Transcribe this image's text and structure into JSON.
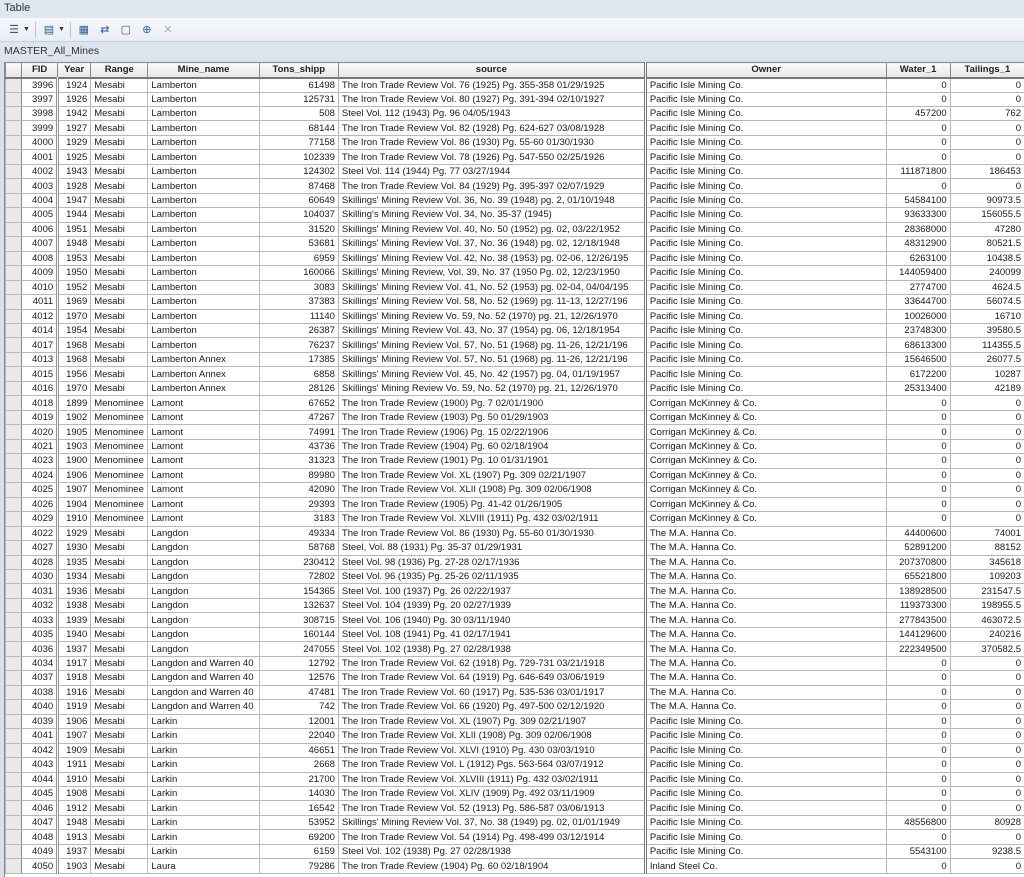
{
  "window": {
    "title": "Table"
  },
  "toolbar": {
    "icons": [
      "table-options-icon",
      "related-tables-icon",
      "select-by-attributes-icon",
      "switch-selection-icon",
      "clear-selection-icon",
      "zoom-to-selected-icon",
      "delete-selected-icon"
    ]
  },
  "table_name": "MASTER_All_Mines",
  "columns": [
    "FID",
    "Year",
    "Range",
    "Mine_name",
    "Tons_shipp",
    "source",
    "Owner",
    "Water_1",
    "Tailings_1"
  ],
  "rows": [
    [
      "3996",
      "1924",
      "Mesabi",
      "Lamberton",
      "61498",
      "The Iron Trade Review Vol. 76 (1925) Pg. 355-358 01/29/1925",
      "Pacific Isle Mining Co.",
      "0",
      "0"
    ],
    [
      "3997",
      "1926",
      "Mesabi",
      "Lamberton",
      "125731",
      "The Iron Trade Review Vol. 80 (1927) Pg. 391-394 02/10/1927",
      "Pacific Isle Mining Co.",
      "0",
      "0"
    ],
    [
      "3998",
      "1942",
      "Mesabi",
      "Lamberton",
      "508",
      "Steel Vol. 112 (1943) Pg. 96 04/05/1943",
      "Pacific Isle Mining Co.",
      "457200",
      "762"
    ],
    [
      "3999",
      "1927",
      "Mesabi",
      "Lamberton",
      "68144",
      "The Iron Trade Review Vol. 82 (1928) Pg. 624-627 03/08/1928",
      "Pacific Isle Mining Co.",
      "0",
      "0"
    ],
    [
      "4000",
      "1929",
      "Mesabi",
      "Lamberton",
      "77158",
      "The Iron Trade Review Vol. 86 (1930) Pg. 55-60 01/30/1930",
      "Pacific Isle Mining Co.",
      "0",
      "0"
    ],
    [
      "4001",
      "1925",
      "Mesabi",
      "Lamberton",
      "102339",
      "The Iron Trade Review Vol. 78 (1926) Pg. 547-550 02/25/1926",
      "Pacific Isle Mining Co.",
      "0",
      "0"
    ],
    [
      "4002",
      "1943",
      "Mesabi",
      "Lamberton",
      "124302",
      "Steel Vol. 114 (1944) Pg. 77 03/27/1944",
      "Pacific Isle Mining Co.",
      "111871800",
      "186453"
    ],
    [
      "4003",
      "1928",
      "Mesabi",
      "Lamberton",
      "87468",
      "The Iron Trade Review Vol. 84 (1929) Pg. 395-397 02/07/1929",
      "Pacific Isle Mining Co.",
      "0",
      "0"
    ],
    [
      "4004",
      "1947",
      "Mesabi",
      "Lamberton",
      "60649",
      "Skillings' Mining Review Vol. 36, No. 39 (1948) pg. 2, 01/10/1948",
      "Pacific Isle Mining Co.",
      "54584100",
      "90973.5"
    ],
    [
      "4005",
      "1944",
      "Mesabi",
      "Lamberton",
      "104037",
      "Skilling's Mining Review Vol. 34, No. 35-37 (1945)",
      "Pacific Isle Mining Co.",
      "93633300",
      "156055.5"
    ],
    [
      "4006",
      "1951",
      "Mesabi",
      "Lamberton",
      "31520",
      "Skillings' Mining Review Vol. 40, No. 50 (1952) pg. 02, 03/22/1952",
      "Pacific Isle Mining Co.",
      "28368000",
      "47280"
    ],
    [
      "4007",
      "1948",
      "Mesabi",
      "Lamberton",
      "53681",
      "Skillings' Mining Review Vol. 37, No. 36 (1948) pg. 02, 12/18/1948",
      "Pacific Isle Mining Co.",
      "48312900",
      "80521.5"
    ],
    [
      "4008",
      "1953",
      "Mesabi",
      "Lamberton",
      "6959",
      "Skillings' Mining Review Vol. 42, No. 38 (1953) pg. 02-06, 12/26/195",
      "Pacific Isle Mining Co.",
      "6263100",
      "10438.5"
    ],
    [
      "4009",
      "1950",
      "Mesabi",
      "Lamberton",
      "160066",
      "Skillings' Mining Review, Vol. 39, No. 37 (1950 Pg. 02, 12/23/1950",
      "Pacific Isle Mining Co.",
      "144059400",
      "240099"
    ],
    [
      "4010",
      "1952",
      "Mesabi",
      "Lamberton",
      "3083",
      "Skillings' Mining Review Vol. 41, No. 52 (1953) pg. 02-04, 04/04/195",
      "Pacific Isle Mining Co.",
      "2774700",
      "4624.5"
    ],
    [
      "4011",
      "1969",
      "Mesabi",
      "Lamberton",
      "37383",
      "Skillings' Mining Review Vol. 58, No. 52 (1969) pg. 11-13, 12/27/196",
      "Pacific Isle Mining Co.",
      "33644700",
      "56074.5"
    ],
    [
      "4012",
      "1970",
      "Mesabi",
      "Lamberton",
      "11140",
      "Skillings' Mining Review Vo. 59, No. 52 (1970) pg. 21, 12/26/1970",
      "Pacific Isle Mining Co.",
      "10026000",
      "16710"
    ],
    [
      "4014",
      "1954",
      "Mesabi",
      "Lamberton",
      "26387",
      "Skillings' Mining Review Vol. 43, No. 37 (1954) pg. 06, 12/18/1954",
      "Pacific Isle Mining Co.",
      "23748300",
      "39580.5"
    ],
    [
      "4017",
      "1968",
      "Mesabi",
      "Lamberton",
      "76237",
      "Skillings' Mining Review Vol. 57, No. 51 (1968) pg. 11-26, 12/21/196",
      "Pacific Isle Mining Co.",
      "68613300",
      "114355.5"
    ],
    [
      "4013",
      "1968",
      "Mesabi",
      "Lamberton Annex",
      "17385",
      "Skillings' Mining Review Vol. 57, No. 51 (1968) pg. 11-26, 12/21/196",
      "Pacific Isle Mining Co.",
      "15646500",
      "26077.5"
    ],
    [
      "4015",
      "1956",
      "Mesabi",
      "Lamberton Annex",
      "6858",
      "Skillings' Mining Review Vol. 45, No. 42 (1957) pg. 04, 01/19/1957",
      "Pacific Isle Mining Co.",
      "6172200",
      "10287"
    ],
    [
      "4016",
      "1970",
      "Mesabi",
      "Lamberton Annex",
      "28126",
      "Skillings' Mining Review Vo. 59, No. 52 (1970) pg. 21, 12/26/1970",
      "Pacific Isle Mining Co.",
      "25313400",
      "42189"
    ],
    [
      "4018",
      "1899",
      "Menominee",
      "Lamont",
      "67652",
      "The Iron Trade Review (1900) Pg. 7 02/01/1900",
      "Corrigan McKinney & Co.",
      "0",
      "0"
    ],
    [
      "4019",
      "1902",
      "Menominee",
      "Lamont",
      "47267",
      "The Iron Trade Review (1903) Pg. 50 01/29/1903",
      "Corrigan McKinney & Co.",
      "0",
      "0"
    ],
    [
      "4020",
      "1905",
      "Menominee",
      "Lamont",
      "74991",
      "The Iron Trade Review (1906) Pg. 15 02/22/1906",
      "Corrigan McKinney & Co.",
      "0",
      "0"
    ],
    [
      "4021",
      "1903",
      "Menominee",
      "Lamont",
      "43736",
      "The Iron Trade Review (1904) Pg. 60 02/18/1904",
      "Corrigan McKinney & Co.",
      "0",
      "0"
    ],
    [
      "4023",
      "1900",
      "Menominee",
      "Lamont",
      "31323",
      "The Iron Trade Review (1901) Pg. 10 01/31/1901",
      "Corrigan McKinney & Co.",
      "0",
      "0"
    ],
    [
      "4024",
      "1906",
      "Menominee",
      "Lamont",
      "89980",
      "The Iron Trade Review Vol. XL (1907) Pg. 309 02/21/1907",
      "Corrigan McKinney & Co.",
      "0",
      "0"
    ],
    [
      "4025",
      "1907",
      "Menominee",
      "Lamont",
      "42090",
      "The Iron Trade Review Vol. XLII (1908) Pg. 309 02/06/1908",
      "Corrigan McKinney & Co.",
      "0",
      "0"
    ],
    [
      "4026",
      "1904",
      "Menominee",
      "Lamont",
      "29393",
      "The Iron Trade Review (1905) Pg. 41-42 01/26/1905",
      "Corrigan McKinney & Co.",
      "0",
      "0"
    ],
    [
      "4029",
      "1910",
      "Menominee",
      "Lamont",
      "3183",
      "The Iron Trade Review Vol. XLVIII (1911) Pg. 432 03/02/1911",
      "Corrigan McKinney & Co.",
      "0",
      "0"
    ],
    [
      "4022",
      "1929",
      "Mesabi",
      "Langdon",
      "49334",
      "The Iron Trade Review Vol. 86 (1930) Pg. 55-60 01/30/1930",
      "The M.A. Hanna Co.",
      "44400600",
      "74001"
    ],
    [
      "4027",
      "1930",
      "Mesabi",
      "Langdon",
      "58768",
      "Steel, Vol. 88 (1931) Pg. 35-37 01/29/1931",
      "The M.A. Hanna Co.",
      "52891200",
      "88152"
    ],
    [
      "4028",
      "1935",
      "Mesabi",
      "Langdon",
      "230412",
      "Steel Vol. 98 (1936) Pg. 27-28 02/17/1936",
      "The M.A. Hanna Co.",
      "207370800",
      "345618"
    ],
    [
      "4030",
      "1934",
      "Mesabi",
      "Langdon",
      "72802",
      "Steel Vol. 96 (1935) Pg. 25-26 02/11/1935",
      "The M.A. Hanna Co.",
      "65521800",
      "109203"
    ],
    [
      "4031",
      "1936",
      "Mesabi",
      "Langdon",
      "154365",
      "Steel Vol. 100 (1937) Pg. 26 02/22/1937",
      "The M.A. Hanna Co.",
      "138928500",
      "231547.5"
    ],
    [
      "4032",
      "1938",
      "Mesabi",
      "Langdon",
      "132637",
      "Steel Vol. 104 (1939) Pg. 20 02/27/1939",
      "The M.A. Hanna Co.",
      "119373300",
      "198955.5"
    ],
    [
      "4033",
      "1939",
      "Mesabi",
      "Langdon",
      "308715",
      "Steel Vol. 106 (1940) Pg. 30 03/11/1940",
      "The M.A. Hanna Co.",
      "277843500",
      "463072.5"
    ],
    [
      "4035",
      "1940",
      "Mesabi",
      "Langdon",
      "160144",
      "Steel Vol. 108 (1941) Pg. 41 02/17/1941",
      "The M.A. Hanna Co.",
      "144129600",
      "240216"
    ],
    [
      "4036",
      "1937",
      "Mesabi",
      "Langdon",
      "247055",
      "Steel Vol. 102 (1938) Pg. 27 02/28/1938",
      "The M.A. Hanna Co.",
      "222349500",
      "370582.5"
    ],
    [
      "4034",
      "1917",
      "Mesabi",
      "Langdon and Warren 40",
      "12792",
      "The Iron Trade Review Vol. 62 (1918) Pg. 729-731 03/21/1918",
      "The M.A. Hanna Co.",
      "0",
      "0"
    ],
    [
      "4037",
      "1918",
      "Mesabi",
      "Langdon and Warren 40",
      "12576",
      "The Iron Trade Review Vol. 64 (1919) Pg. 646-649 03/06/1919",
      "The M.A. Hanna Co.",
      "0",
      "0"
    ],
    [
      "4038",
      "1916",
      "Mesabi",
      "Langdon and Warren 40",
      "47481",
      "The Iron Trade Review Vol. 60 (1917) Pg. 535-536 03/01/1917",
      "The M.A. Hanna Co.",
      "0",
      "0"
    ],
    [
      "4040",
      "1919",
      "Mesabi",
      "Langdon and Warren 40",
      "742",
      "The Iron Trade Review Vol. 66 (1920) Pg. 497-500 02/12/1920",
      "The M.A. Hanna Co.",
      "0",
      "0"
    ],
    [
      "4039",
      "1906",
      "Mesabi",
      "Larkin",
      "12001",
      "The Iron Trade Review Vol. XL (1907) Pg. 309 02/21/1907",
      "Pacific Isle Mining Co.",
      "0",
      "0"
    ],
    [
      "4041",
      "1907",
      "Mesabi",
      "Larkin",
      "22040",
      "The Iron Trade Review Vol. XLII (1908) Pg. 309 02/06/1908",
      "Pacific Isle Mining Co.",
      "0",
      "0"
    ],
    [
      "4042",
      "1909",
      "Mesabi",
      "Larkin",
      "46651",
      "The Iron Trade Review Vol. XLVI (1910) Pg. 430 03/03/1910",
      "Pacific Isle Mining Co.",
      "0",
      "0"
    ],
    [
      "4043",
      "1911",
      "Mesabi",
      "Larkin",
      "2668",
      "The Iron Trade Review Vol. L (1912) Pgs. 563-564 03/07/1912",
      "Pacific Isle Mining Co.",
      "0",
      "0"
    ],
    [
      "4044",
      "1910",
      "Mesabi",
      "Larkin",
      "21700",
      "The Iron Trade Review Vol. XLVIII (1911) Pg. 432 03/02/1911",
      "Pacific Isle Mining Co.",
      "0",
      "0"
    ],
    [
      "4045",
      "1908",
      "Mesabi",
      "Larkin",
      "14030",
      "The Iron Trade Review Vol. XLIV (1909) Pg. 492 03/11/1909",
      "Pacific Isle Mining Co.",
      "0",
      "0"
    ],
    [
      "4046",
      "1912",
      "Mesabi",
      "Larkin",
      "16542",
      "The Iron Trade Review Vol. 52 (1913) Pg. 586-587 03/06/1913",
      "Pacific Isle Mining Co.",
      "0",
      "0"
    ],
    [
      "4047",
      "1948",
      "Mesabi",
      "Larkin",
      "53952",
      "Skillings' Mining Review Vol. 37, No. 38 (1949) pg. 02, 01/01/1949",
      "Pacific Isle Mining Co.",
      "48556800",
      "80928"
    ],
    [
      "4048",
      "1913",
      "Mesabi",
      "Larkin",
      "69200",
      "The Iron Trade Review Vol. 54 (1914) Pg. 498-499 03/12/1914",
      "Pacific Isle Mining Co.",
      "0",
      "0"
    ],
    [
      "4049",
      "1937",
      "Mesabi",
      "Larkin",
      "6159",
      "Steel Vol. 102 (1938) Pg. 27 02/28/1938",
      "Pacific Isle Mining Co.",
      "5543100",
      "9238.5"
    ],
    [
      "4050",
      "1903",
      "Mesabi",
      "Laura",
      "79286",
      "The Iron Trade Review (1904) Pg. 60 02/18/1904",
      "Inland Steel Co.",
      "0",
      "0"
    ]
  ]
}
